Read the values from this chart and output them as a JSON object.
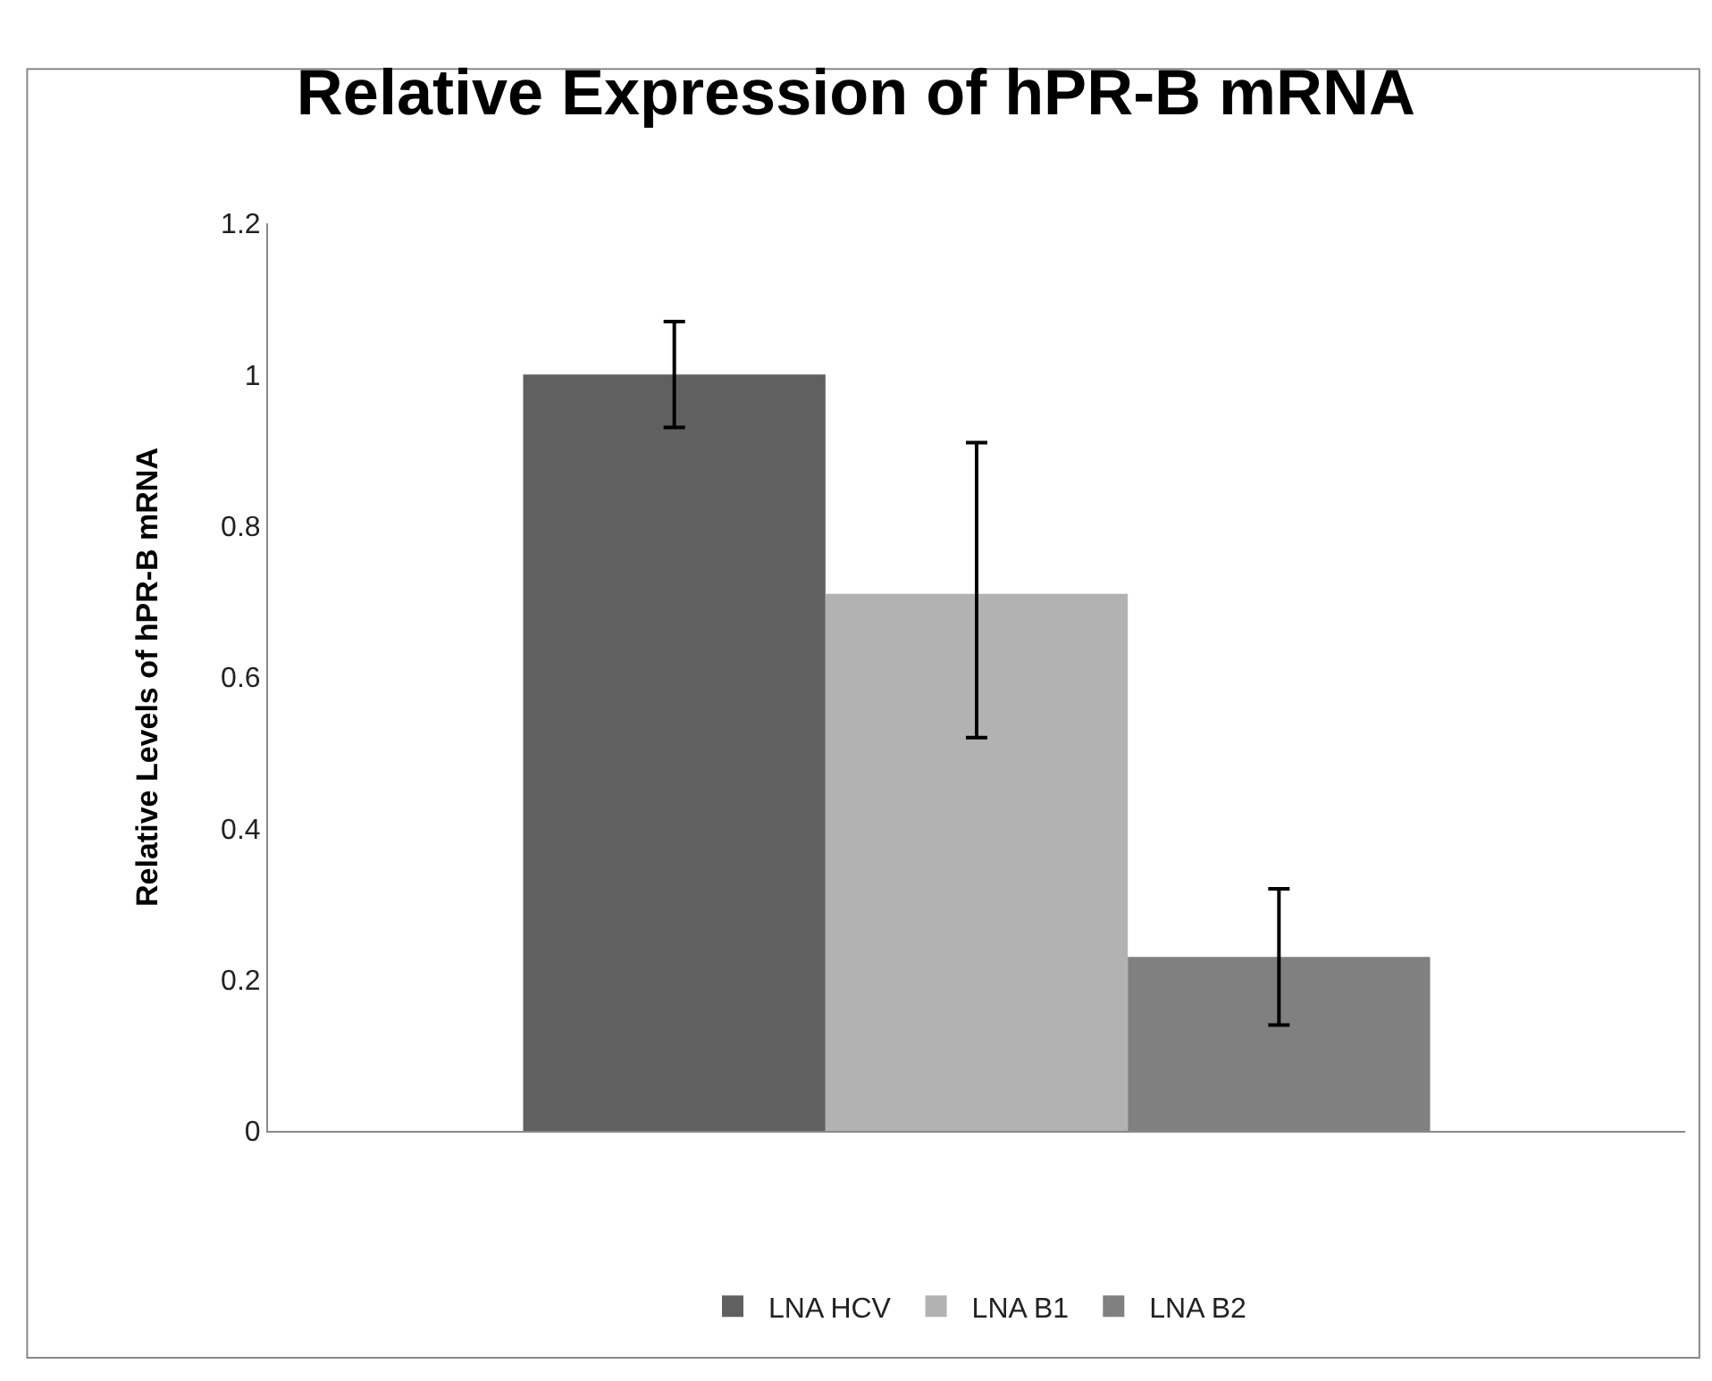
{
  "chart_data": {
    "type": "bar",
    "title": "Relative Expression of hPR-B mRNA",
    "ylabel": "Relative Levels of hPR-B mRNA",
    "categories": [
      null
    ],
    "series": [
      {
        "name": "LNA HCV",
        "color": "#606060",
        "values": [
          1.0
        ],
        "errors": [
          [
            0.93,
            1.07
          ]
        ]
      },
      {
        "name": "LNA B1",
        "color": "#b2b2b2",
        "values": [
          0.71
        ],
        "errors": [
          [
            0.52,
            0.91
          ]
        ]
      },
      {
        "name": "LNA B2",
        "color": "#808080",
        "values": [
          0.23
        ],
        "errors": [
          [
            0.14,
            0.32
          ]
        ]
      }
    ],
    "ylim": [
      0,
      1.2
    ],
    "yticks": [
      0,
      0.2,
      0.4,
      0.6,
      0.8,
      1,
      1.2
    ],
    "legend": "bottom"
  }
}
